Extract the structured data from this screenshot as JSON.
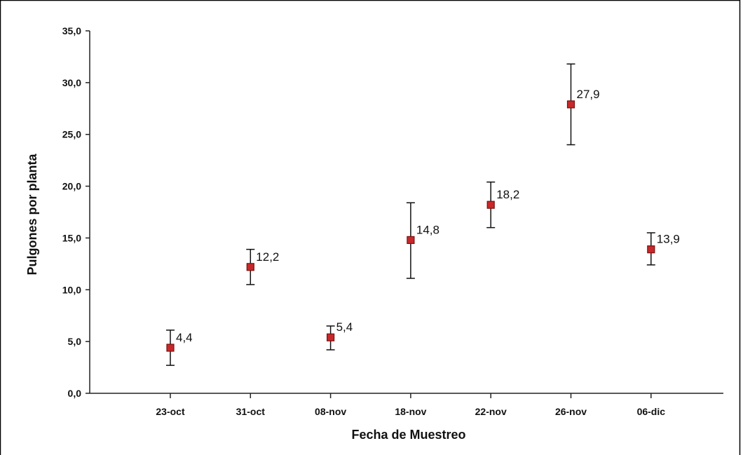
{
  "chart_data": {
    "type": "scatter",
    "title": "",
    "xlabel": "Fecha de Muestreo",
    "ylabel": "Pulgones por planta",
    "categories": [
      "23-oct",
      "31-oct",
      "08-nov",
      "18-nov",
      "22-nov",
      "26-nov",
      "06-dic"
    ],
    "values": [
      4.4,
      12.2,
      5.4,
      14.8,
      18.2,
      27.9,
      13.9
    ],
    "value_labels": [
      "4,4",
      "12,2",
      "5,4",
      "14,8",
      "18,2",
      "27,9",
      "13,9"
    ],
    "error_low": [
      2.7,
      10.5,
      4.2,
      11.1,
      16.0,
      24.0,
      12.4
    ],
    "error_high": [
      6.1,
      13.9,
      6.5,
      18.4,
      20.4,
      31.8,
      15.5
    ],
    "ylim": [
      0,
      35
    ],
    "yticks": [
      0,
      5,
      10,
      15,
      20,
      25,
      30,
      35
    ],
    "ytick_labels": [
      "0,0",
      "5,0",
      "10,0",
      "15,0",
      "20,0",
      "25,0",
      "30,0",
      "35,0"
    ],
    "grid": false,
    "legend": "none",
    "colors": {
      "marker_fill": "#c8282a",
      "marker_stroke": "#7a1010",
      "axis": "#222222",
      "frame": "#000000"
    }
  }
}
